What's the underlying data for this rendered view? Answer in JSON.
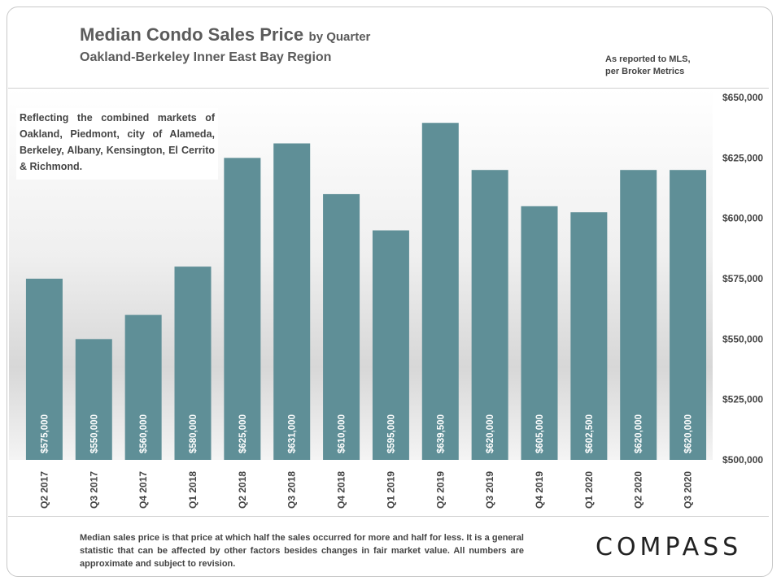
{
  "header": {
    "title": "Median Condo Sales Price",
    "title_suffix": "by Quarter",
    "subtitle": "Oakland-Berkeley  Inner East Bay Region",
    "source": "As reported to MLS,\nper Broker Metrics"
  },
  "note": "Reflecting the combined markets of Oakland, Piedmont, city of Alameda, Berkeley, Albany, Kensington, El Cerrito & Richmond.",
  "footer": "Median sales price is that price at which half the sales occurred for more and half for less. It is a general statistic that can be affected by other factors besides changes in fair market value. All numbers are approximate and subject to revision.",
  "logo": "COMPASS",
  "chart_data": {
    "type": "bar",
    "categories": [
      "Q2 2017",
      "Q3 2017",
      "Q4 2017",
      "Q1 2018",
      "Q2 2018",
      "Q3 2018",
      "Q4 2018",
      "Q1 2019",
      "Q2 2019",
      "Q3 2019",
      "Q4 2019",
      "Q1 2020",
      "Q2 2020",
      "Q3 2020"
    ],
    "values": [
      575000,
      550000,
      560000,
      580000,
      625000,
      631000,
      610000,
      595000,
      639500,
      620000,
      605000,
      602500,
      620000,
      620000
    ],
    "data_labels": [
      "$575,000",
      "$550,000",
      "$560,000",
      "$580,000",
      "$625,000",
      "$631,000",
      "$610,000",
      "$595,000",
      "$639,500",
      "$620,000",
      "$605,000",
      "$602,500",
      "$620,000",
      "$620,000"
    ],
    "yticks": [
      500000,
      525000,
      550000,
      575000,
      600000,
      625000,
      650000
    ],
    "ytick_labels": [
      "$500,000",
      "$525,000",
      "$550,000",
      "$575,000",
      "$600,000",
      "$625,000",
      "$650,000"
    ],
    "ylim": [
      500000,
      650000
    ],
    "axis_position": "right",
    "bar_color": "#5f8f97",
    "label_color": "#ffffff"
  }
}
